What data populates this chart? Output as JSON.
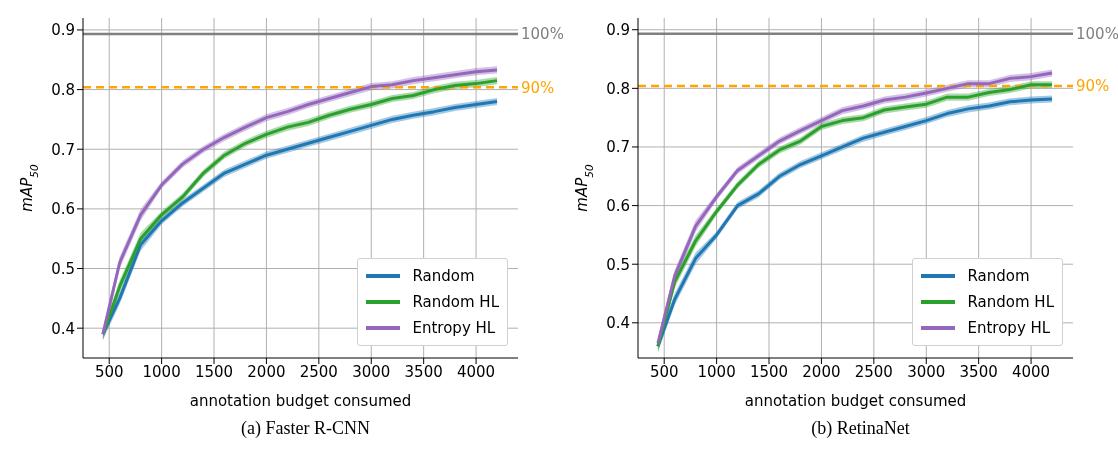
{
  "chart_data": [
    {
      "type": "line",
      "annotations": [
        "(a) Faster R-CNN",
        "100%",
        "90%"
      ],
      "xlabel": "annotation budget consumed",
      "ylabel": "mAP$_{50}$",
      "x": [
        440,
        600,
        800,
        1000,
        1200,
        1400,
        1600,
        1800,
        2000,
        2200,
        2400,
        2600,
        2800,
        3000,
        3200,
        3400,
        3600,
        3800,
        4000,
        4200
      ],
      "xlim": [
        250,
        4400
      ],
      "xticks": [
        500,
        1000,
        1500,
        2000,
        2500,
        3000,
        3500,
        4000
      ],
      "ylim": [
        0.35,
        0.92
      ],
      "yticks": [
        0.4,
        0.5,
        0.6,
        0.7,
        0.8,
        0.9
      ],
      "grid": true,
      "legend": "bottom right",
      "marker": "none",
      "line_style": "solid",
      "ref_lines": [
        {
          "axis": "y",
          "value": 0.893,
          "color": "#808080",
          "line_style": "solid"
        },
        {
          "axis": "y",
          "value": 0.804,
          "color": "#ffa500",
          "line_style": "dashed"
        }
      ],
      "series": [
        {
          "name": "Random",
          "color": "#1f77b4",
          "values": [
            0.39,
            0.45,
            0.54,
            0.58,
            0.61,
            0.635,
            0.66,
            0.675,
            0.69,
            0.7,
            0.71,
            0.72,
            0.73,
            0.74,
            0.75,
            0.757,
            0.763,
            0.77,
            0.775,
            0.78
          ],
          "lower": [
            0.38,
            0.44,
            0.53,
            0.574,
            0.604,
            0.629,
            0.654,
            0.669,
            0.684,
            0.694,
            0.704,
            0.714,
            0.724,
            0.734,
            0.744,
            0.751,
            0.757,
            0.764,
            0.769,
            0.774
          ],
          "upper": [
            0.4,
            0.46,
            0.55,
            0.586,
            0.616,
            0.641,
            0.666,
            0.681,
            0.696,
            0.706,
            0.716,
            0.726,
            0.736,
            0.746,
            0.756,
            0.763,
            0.769,
            0.776,
            0.781,
            0.786
          ]
        },
        {
          "name": "Random HL",
          "color": "#2ca02c",
          "values": [
            0.39,
            0.47,
            0.55,
            0.59,
            0.62,
            0.66,
            0.69,
            0.71,
            0.725,
            0.737,
            0.745,
            0.757,
            0.767,
            0.775,
            0.785,
            0.79,
            0.8,
            0.807,
            0.81,
            0.815
          ],
          "lower": [
            0.38,
            0.46,
            0.54,
            0.584,
            0.614,
            0.654,
            0.684,
            0.704,
            0.719,
            0.731,
            0.739,
            0.751,
            0.761,
            0.769,
            0.779,
            0.784,
            0.794,
            0.801,
            0.804,
            0.809
          ],
          "upper": [
            0.4,
            0.48,
            0.56,
            0.596,
            0.626,
            0.666,
            0.696,
            0.716,
            0.731,
            0.743,
            0.751,
            0.763,
            0.773,
            0.781,
            0.791,
            0.796,
            0.806,
            0.813,
            0.816,
            0.821
          ]
        },
        {
          "name": "Entropy HL",
          "color": "#9467bd",
          "values": [
            0.39,
            0.51,
            0.59,
            0.64,
            0.675,
            0.7,
            0.72,
            0.737,
            0.753,
            0.763,
            0.775,
            0.785,
            0.795,
            0.805,
            0.808,
            0.815,
            0.82,
            0.825,
            0.83,
            0.833
          ],
          "lower": [
            0.38,
            0.5,
            0.58,
            0.634,
            0.669,
            0.694,
            0.714,
            0.731,
            0.747,
            0.757,
            0.769,
            0.779,
            0.789,
            0.799,
            0.802,
            0.809,
            0.814,
            0.819,
            0.824,
            0.827
          ],
          "upper": [
            0.4,
            0.52,
            0.6,
            0.646,
            0.681,
            0.706,
            0.726,
            0.743,
            0.759,
            0.769,
            0.781,
            0.791,
            0.801,
            0.811,
            0.814,
            0.821,
            0.826,
            0.831,
            0.836,
            0.839
          ]
        }
      ]
    },
    {
      "type": "line",
      "annotations": [
        "(b) RetinaNet",
        "100%",
        "90%"
      ],
      "xlabel": "annotation budget consumed",
      "ylabel": "mAP$_{50}$",
      "x": [
        440,
        600,
        800,
        1000,
        1200,
        1400,
        1600,
        1800,
        2000,
        2200,
        2400,
        2600,
        2800,
        3000,
        3200,
        3400,
        3600,
        3800,
        4000,
        4200
      ],
      "xlim": [
        250,
        4400
      ],
      "xticks": [
        500,
        1000,
        1500,
        2000,
        2500,
        3000,
        3500,
        4000
      ],
      "ylim": [
        0.34,
        0.92
      ],
      "yticks": [
        0.4,
        0.5,
        0.6,
        0.7,
        0.8,
        0.9
      ],
      "grid": true,
      "legend": "bottom right",
      "marker": "none",
      "line_style": "solid",
      "ref_lines": [
        {
          "axis": "y",
          "value": 0.893,
          "color": "#808080",
          "line_style": "solid"
        },
        {
          "axis": "y",
          "value": 0.804,
          "color": "#ffa500",
          "line_style": "dashed"
        }
      ],
      "series": [
        {
          "name": "Random",
          "color": "#1f77b4",
          "values": [
            0.36,
            0.44,
            0.51,
            0.55,
            0.6,
            0.62,
            0.65,
            0.67,
            0.685,
            0.7,
            0.715,
            0.725,
            0.735,
            0.745,
            0.757,
            0.765,
            0.77,
            0.777,
            0.78,
            0.782
          ],
          "lower": [
            0.35,
            0.43,
            0.5,
            0.544,
            0.594,
            0.614,
            0.644,
            0.664,
            0.679,
            0.694,
            0.709,
            0.719,
            0.729,
            0.739,
            0.751,
            0.759,
            0.764,
            0.771,
            0.774,
            0.776
          ],
          "upper": [
            0.37,
            0.45,
            0.52,
            0.556,
            0.606,
            0.626,
            0.656,
            0.676,
            0.691,
            0.706,
            0.721,
            0.731,
            0.741,
            0.751,
            0.763,
            0.771,
            0.776,
            0.783,
            0.786,
            0.788
          ]
        },
        {
          "name": "Random HL",
          "color": "#2ca02c",
          "values": [
            0.36,
            0.47,
            0.54,
            0.59,
            0.635,
            0.67,
            0.695,
            0.71,
            0.735,
            0.745,
            0.75,
            0.763,
            0.768,
            0.773,
            0.785,
            0.785,
            0.793,
            0.798,
            0.806,
            0.806
          ],
          "lower": [
            0.35,
            0.46,
            0.53,
            0.584,
            0.629,
            0.664,
            0.689,
            0.704,
            0.729,
            0.739,
            0.744,
            0.757,
            0.762,
            0.767,
            0.779,
            0.779,
            0.787,
            0.792,
            0.8,
            0.8
          ],
          "upper": [
            0.37,
            0.48,
            0.55,
            0.596,
            0.641,
            0.676,
            0.701,
            0.716,
            0.741,
            0.751,
            0.756,
            0.769,
            0.774,
            0.779,
            0.791,
            0.791,
            0.799,
            0.804,
            0.812,
            0.812
          ]
        },
        {
          "name": "Entropy HL",
          "color": "#9467bd",
          "values": [
            0.365,
            0.48,
            0.565,
            0.615,
            0.66,
            0.685,
            0.71,
            0.728,
            0.745,
            0.762,
            0.77,
            0.78,
            0.785,
            0.792,
            0.8,
            0.808,
            0.808,
            0.817,
            0.82,
            0.826
          ],
          "lower": [
            0.355,
            0.47,
            0.555,
            0.609,
            0.654,
            0.679,
            0.704,
            0.722,
            0.739,
            0.756,
            0.764,
            0.774,
            0.779,
            0.786,
            0.794,
            0.802,
            0.802,
            0.811,
            0.814,
            0.82
          ],
          "upper": [
            0.375,
            0.49,
            0.575,
            0.621,
            0.666,
            0.691,
            0.716,
            0.734,
            0.751,
            0.768,
            0.776,
            0.786,
            0.791,
            0.798,
            0.806,
            0.814,
            0.814,
            0.823,
            0.826,
            0.832
          ]
        }
      ]
    }
  ]
}
